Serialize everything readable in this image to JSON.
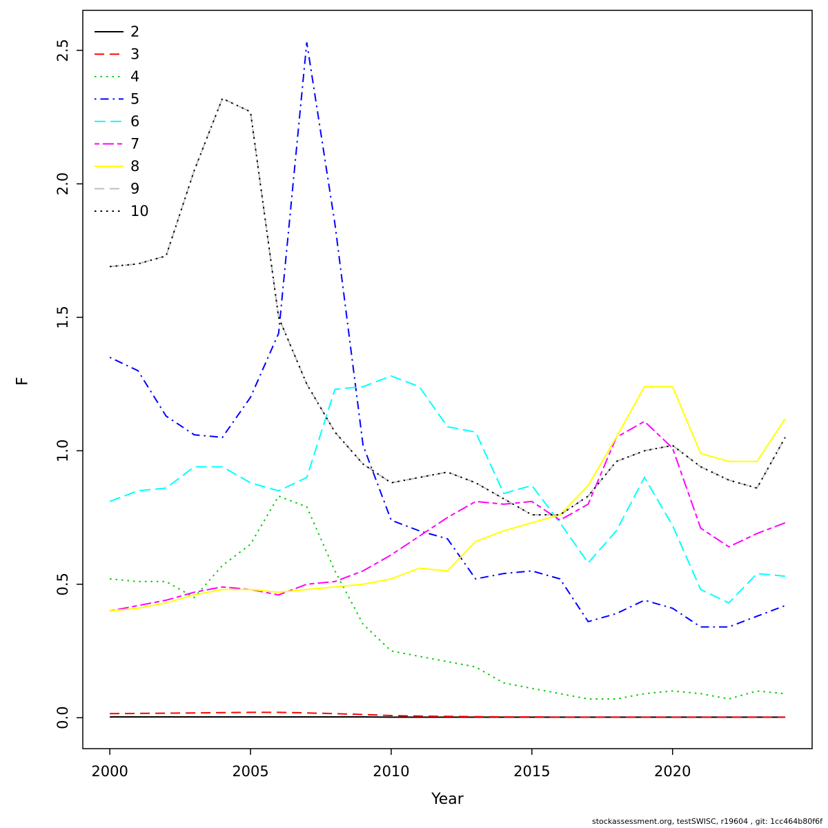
{
  "footer": {
    "text": "stockassessment.org, testSWISC, r19604 , git: 1cc464b80f6f"
  },
  "chart_data": {
    "type": "line",
    "title": "",
    "xlabel": "Year",
    "ylabel": "F",
    "xlim": [
      1999.04,
      2024.96
    ],
    "ylim": [
      -0.116,
      2.65
    ],
    "x_ticks": [
      2000,
      2005,
      2010,
      2015,
      2020
    ],
    "x_tick_labels": [
      "2000",
      "2005",
      "2010",
      "2015",
      "2020"
    ],
    "y_ticks": [
      0.0,
      0.5,
      1.0,
      1.5,
      2.0,
      2.5
    ],
    "y_tick_labels": [
      "0.0",
      "0.5",
      "1.0",
      "1.5",
      "2.0",
      "2.5"
    ],
    "grid": false,
    "legend_position": "top-left",
    "x": [
      2000,
      2001,
      2002,
      2003,
      2004,
      2005,
      2006,
      2007,
      2008,
      2009,
      2010,
      2011,
      2012,
      2013,
      2014,
      2015,
      2016,
      2017,
      2018,
      2019,
      2020,
      2021,
      2022,
      2023,
      2024
    ],
    "series": [
      {
        "name": "2",
        "color": "#000000",
        "linetype": "solid",
        "values": [
          0.003,
          0.003,
          0.003,
          0.003,
          0.003,
          0.003,
          0.003,
          0.003,
          0.003,
          0.003,
          0.002,
          0.002,
          0.002,
          0.002,
          0.002,
          0.002,
          0.002,
          0.002,
          0.002,
          0.002,
          0.002,
          0.002,
          0.002,
          0.002,
          0.002
        ]
      },
      {
        "name": "3",
        "color": "#ff0000",
        "linetype": "dashed",
        "values": [
          0.015,
          0.016,
          0.017,
          0.018,
          0.019,
          0.02,
          0.02,
          0.018,
          0.015,
          0.012,
          0.008,
          0.006,
          0.005,
          0.004,
          0.003,
          0.003,
          0.002,
          0.002,
          0.002,
          0.002,
          0.002,
          0.002,
          0.002,
          0.002,
          0.002
        ]
      },
      {
        "name": "4",
        "color": "#00cd00",
        "linetype": "dotted",
        "values": [
          0.52,
          0.51,
          0.51,
          0.45,
          0.57,
          0.65,
          0.83,
          0.79,
          0.55,
          0.35,
          0.25,
          0.23,
          0.21,
          0.19,
          0.13,
          0.11,
          0.09,
          0.07,
          0.07,
          0.09,
          0.1,
          0.09,
          0.07,
          0.1,
          0.09
        ]
      },
      {
        "name": "5",
        "color": "#0000ff",
        "linetype": "dotdash",
        "values": [
          1.35,
          1.3,
          1.13,
          1.06,
          1.05,
          1.2,
          1.44,
          2.53,
          1.85,
          1.02,
          0.74,
          0.7,
          0.67,
          0.52,
          0.54,
          0.55,
          0.52,
          0.36,
          0.39,
          0.44,
          0.41,
          0.34,
          0.34,
          0.38,
          0.42
        ]
      },
      {
        "name": "6",
        "color": "#00ffff",
        "linetype": "longdash",
        "values": [
          0.81,
          0.85,
          0.86,
          0.94,
          0.94,
          0.88,
          0.85,
          0.9,
          1.23,
          1.24,
          1.28,
          1.24,
          1.09,
          1.07,
          0.84,
          0.87,
          0.73,
          0.58,
          0.7,
          0.9,
          0.72,
          0.48,
          0.43,
          0.54,
          0.53
        ]
      },
      {
        "name": "7",
        "color": "#ff00ff",
        "linetype": "twodash",
        "values": [
          0.4,
          0.42,
          0.44,
          0.47,
          0.49,
          0.48,
          0.46,
          0.5,
          0.51,
          0.55,
          0.61,
          0.68,
          0.75,
          0.81,
          0.8,
          0.81,
          0.74,
          0.8,
          1.05,
          1.11,
          1.01,
          0.71,
          0.64,
          0.69,
          0.73
        ]
      },
      {
        "name": "8",
        "color": "#ffff00",
        "linetype": "solid",
        "values": [
          0.4,
          0.41,
          0.43,
          0.46,
          0.48,
          0.48,
          0.47,
          0.48,
          0.49,
          0.5,
          0.52,
          0.56,
          0.55,
          0.66,
          0.7,
          0.73,
          0.76,
          0.87,
          1.05,
          1.24,
          1.24,
          0.99,
          0.96,
          0.96,
          1.12
        ]
      },
      {
        "name": "9",
        "color": "#bebebe",
        "linetype": "dashed",
        "values": [
          1.69,
          1.7,
          1.73,
          2.05,
          2.32,
          2.27,
          1.5,
          1.25,
          1.07,
          0.95,
          0.88,
          0.9,
          0.92,
          0.88,
          0.82,
          0.76,
          0.76,
          0.83,
          0.96,
          1.0,
          1.02,
          0.94,
          0.89,
          0.86,
          1.05
        ]
      },
      {
        "name": "10",
        "color": "#000000",
        "linetype": "dotted",
        "values": [
          1.69,
          1.7,
          1.73,
          2.05,
          2.32,
          2.27,
          1.5,
          1.25,
          1.07,
          0.95,
          0.88,
          0.9,
          0.92,
          0.88,
          0.82,
          0.76,
          0.76,
          0.83,
          0.96,
          1.0,
          1.02,
          0.94,
          0.89,
          0.86,
          1.05
        ]
      }
    ]
  }
}
